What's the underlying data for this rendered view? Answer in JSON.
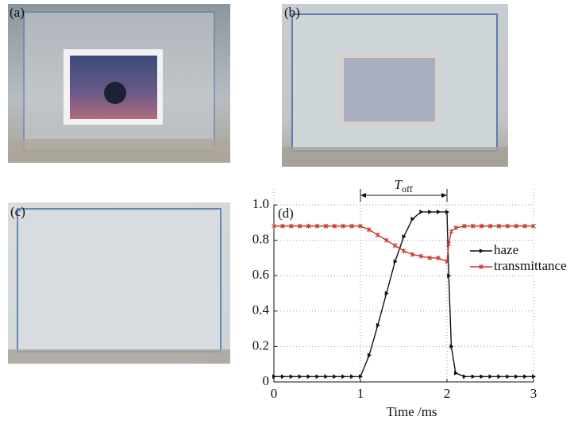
{
  "photos": [
    {
      "label": "(a)"
    },
    {
      "label": "(b)"
    },
    {
      "label": "(c)"
    }
  ],
  "chart_data": {
    "type": "line",
    "panel_label": "(d)",
    "annotation": {
      "symbol": "T",
      "subscript": "off"
    },
    "xlabel": "Time /ms",
    "x": [
      0,
      0.1,
      0.2,
      0.3,
      0.4,
      0.5,
      0.6,
      0.7,
      0.8,
      0.9,
      1.0,
      1.1,
      1.2,
      1.3,
      1.4,
      1.5,
      1.6,
      1.7,
      1.8,
      1.9,
      2.0,
      2.02,
      2.05,
      2.1,
      2.2,
      2.3,
      2.4,
      2.5,
      2.6,
      2.7,
      2.8,
      2.9,
      3.0
    ],
    "series": [
      {
        "name": "haze",
        "color": "#111111",
        "marker": "triangle",
        "values": [
          0.03,
          0.03,
          0.03,
          0.03,
          0.03,
          0.03,
          0.03,
          0.03,
          0.03,
          0.03,
          0.03,
          0.15,
          0.32,
          0.5,
          0.68,
          0.82,
          0.92,
          0.96,
          0.96,
          0.96,
          0.96,
          0.6,
          0.2,
          0.05,
          0.03,
          0.03,
          0.03,
          0.03,
          0.03,
          0.03,
          0.03,
          0.03,
          0.03
        ]
      },
      {
        "name": "transmittance",
        "color": "#c8342c",
        "marker": "star",
        "values": [
          0.88,
          0.88,
          0.88,
          0.88,
          0.88,
          0.88,
          0.88,
          0.88,
          0.88,
          0.88,
          0.88,
          0.86,
          0.83,
          0.8,
          0.77,
          0.74,
          0.72,
          0.71,
          0.7,
          0.7,
          0.68,
          0.78,
          0.85,
          0.87,
          0.88,
          0.88,
          0.88,
          0.88,
          0.88,
          0.88,
          0.88,
          0.88,
          0.88
        ]
      }
    ],
    "xlim": [
      0,
      3
    ],
    "xticks": [
      0,
      1,
      2,
      3
    ],
    "ylim": [
      0,
      1
    ],
    "yticks": [
      0,
      0.2,
      0.4,
      0.6,
      0.8,
      {
        "value": 1,
        "label": "1.0"
      }
    ],
    "grid": true,
    "legend": "right"
  }
}
